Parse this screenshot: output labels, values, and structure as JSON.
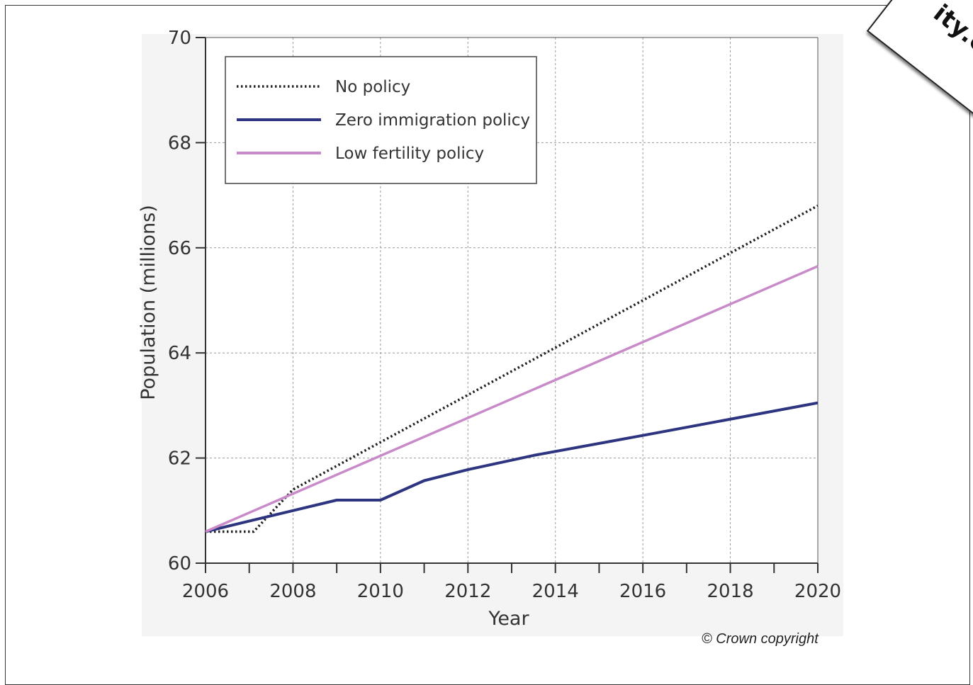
{
  "chart_data": {
    "type": "line",
    "xlabel": "Year",
    "ylabel": "Population (millions)",
    "xlim": [
      2006,
      2020
    ],
    "ylim": [
      60,
      70
    ],
    "x_ticks": [
      "2006",
      "2008",
      "2010",
      "2012",
      "2014",
      "2016",
      "2018",
      "2020"
    ],
    "y_ticks": [
      "60",
      "62",
      "64",
      "66",
      "68",
      "70"
    ],
    "grid": true,
    "legend_position": "top-left",
    "series": [
      {
        "name": "No policy",
        "style": "dotted",
        "color": "#222222",
        "x": [
          2006,
          2007.1,
          2008,
          2020
        ],
        "y": [
          60.6,
          60.6,
          61.4,
          66.8
        ]
      },
      {
        "name": "Zero immigration policy",
        "style": "solid",
        "color": "#2e3580",
        "x": [
          2006,
          2007,
          2008,
          2009,
          2010,
          2011,
          2012,
          2013.5,
          2016,
          2020
        ],
        "y": [
          60.6,
          60.8,
          61.0,
          61.2,
          61.2,
          61.57,
          61.78,
          62.05,
          62.43,
          63.05
        ]
      },
      {
        "name": "Low fertility policy",
        "style": "solid",
        "color": "#c88ac9",
        "x": [
          2006,
          2020
        ],
        "y": [
          60.6,
          65.65
        ]
      }
    ]
  },
  "copyright": "© Crown copyright",
  "stamp_text": "ity.c"
}
